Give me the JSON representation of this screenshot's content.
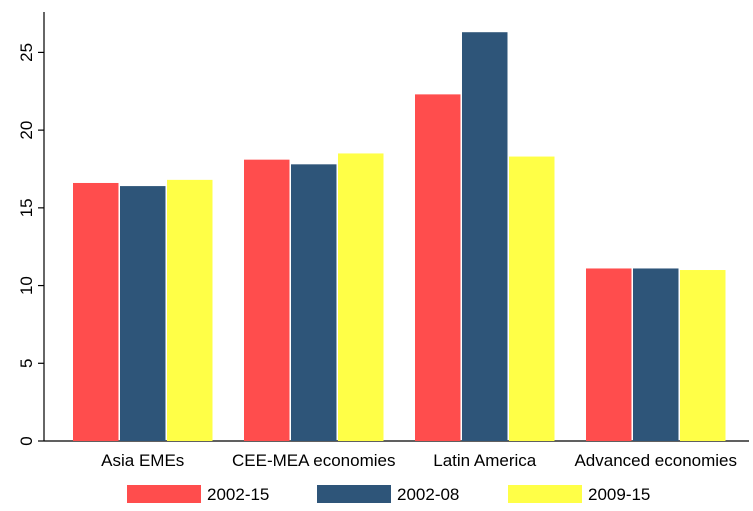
{
  "chart_data": {
    "type": "bar",
    "title": "",
    "xlabel": "",
    "ylabel": "",
    "categories": [
      "Asia EMEs",
      "CEE-MEA economies",
      "Latin America",
      "Advanced economies"
    ],
    "series": [
      {
        "name": "2002-15",
        "color": "#ff4d4d",
        "values": [
          16.6,
          18.1,
          22.3,
          11.1
        ]
      },
      {
        "name": "2002-08",
        "color": "#2e5579",
        "values": [
          16.4,
          17.8,
          26.3,
          11.1
        ]
      },
      {
        "name": "2009-15",
        "color": "#ffff47",
        "values": [
          16.8,
          18.5,
          18.3,
          11.0
        ]
      }
    ],
    "ylim": [
      0,
      27.6
    ],
    "yticks": [
      "0",
      "5",
      "10",
      "15",
      "20",
      "25"
    ],
    "grid": false,
    "legend": "bottom"
  }
}
